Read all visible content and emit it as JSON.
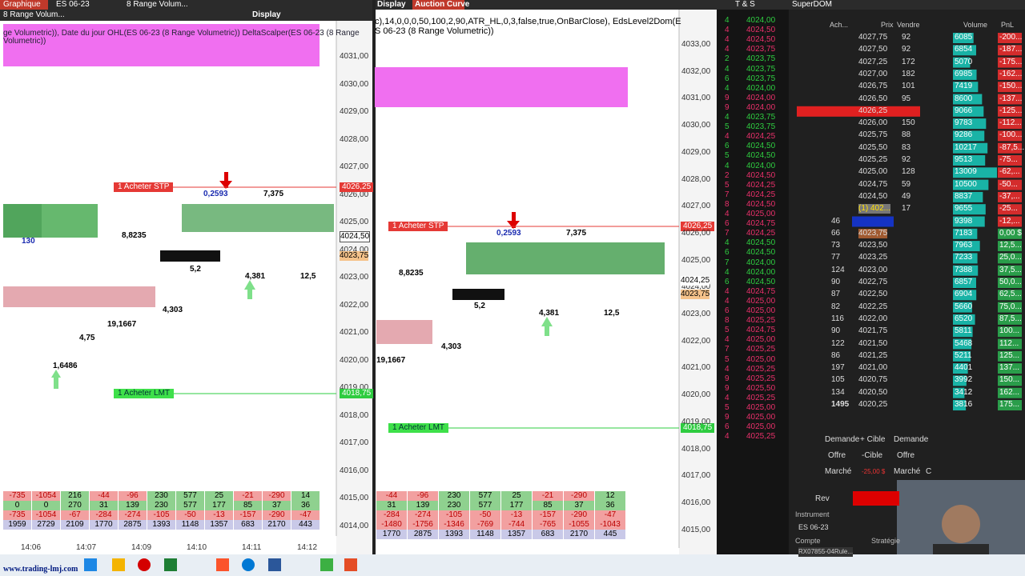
{
  "toolbar": {
    "tab": "Graphique",
    "instrument": "ES 06-23",
    "bar_type": "8 Range Volum...",
    "display": "Display",
    "bar_type_row2": "8 Range Volum..."
  },
  "left_chart": {
    "header": "ge Volumetric)), Date du jour OHL(ES 06-23 (8 Range Volumetric))   DeltaScalper(ES 06-23 (8 Range",
    "header2": "Volumetric))",
    "price_labels": [
      "4031,00",
      "4030,00",
      "4029,00",
      "4028,00",
      "4027,00",
      "4026,00",
      "4025,00",
      "4024,00",
      "4023,00",
      "4022,00",
      "4021,00",
      "4020,00",
      "4019,00",
      "4018,00",
      "4017,00",
      "4016,00",
      "4015,00",
      "4014,00"
    ],
    "orders": [
      {
        "label": "1  Acheter STP",
        "price": "4026,25"
      },
      {
        "label": "1  Acheter LMT",
        "price": "4018,75"
      }
    ],
    "markers": [
      "4024,50",
      "4023,75"
    ],
    "annotations": [
      "8,8235",
      "19,1667",
      "4,303",
      "4,381",
      "5,2",
      "12,5",
      "7,375",
      "0,2593",
      "4,75",
      "1,6486",
      "130"
    ],
    "summary": [
      [
        "-735",
        "-1054",
        "216",
        "-44",
        "-96",
        "230",
        "577",
        "25",
        "-21",
        "-290",
        "14"
      ],
      [
        "0",
        "0",
        "270",
        "31",
        "139",
        "230",
        "577",
        "177",
        "85",
        "37",
        "36"
      ],
      [
        "-735",
        "-1054",
        "-67",
        "-284",
        "-274",
        "-105",
        "-50",
        "-13",
        "-157",
        "-290",
        "-47"
      ],
      [
        "1959",
        "2729",
        "2109",
        "1770",
        "2875",
        "1393",
        "1148",
        "1357",
        "683",
        "2170",
        "443"
      ]
    ],
    "time_labels": [
      "14:06",
      "14:07",
      "14:09",
      "14:10",
      "14:11",
      "14:12"
    ]
  },
  "right_chart": {
    "tabs": [
      "Display",
      "Auction Curve"
    ],
    "header": "c),14,0,0,0,50,100,2,90,ATR_HL,0,3,false,true,OnBarClose), EdsLevel2Dom(E",
    "header2": "S 06-23 (8 Range Volumetric))",
    "price_labels": [
      "4033,00",
      "4032,00",
      "4031,00",
      "4030,00",
      "4029,00",
      "4028,00",
      "4027,00",
      "4026,00",
      "4025,00",
      "4024,00",
      "4023,00",
      "4022,00",
      "4021,00",
      "4020,00",
      "4019,00",
      "4018,00",
      "4017,00",
      "4016,00",
      "4015,00"
    ],
    "orders": [
      {
        "label": "1  Acheter STP",
        "price": "4026,25"
      },
      {
        "label": "1  Acheter LMT",
        "price": "4018,75"
      }
    ],
    "markers": [
      "4024,25",
      "4023,75"
    ],
    "annotations": [
      "8,8235",
      "19,1667",
      "4,303",
      "4,381",
      "5,2",
      "12,5",
      "7,375",
      "0,2593"
    ],
    "summary": [
      [
        "-44",
        "-96",
        "230",
        "577",
        "25",
        "-21",
        "-290",
        "12"
      ],
      [
        "31",
        "139",
        "230",
        "577",
        "177",
        "85",
        "37",
        "36"
      ],
      [
        "-284",
        "-274",
        "-105",
        "-50",
        "-13",
        "-157",
        "-290",
        "-47"
      ],
      [
        "-1480",
        "-1756",
        "-1346",
        "-769",
        "-744",
        "-765",
        "-1055",
        "-1043"
      ],
      [
        "1770",
        "2875",
        "1393",
        "1148",
        "1357",
        "683",
        "2170",
        "445"
      ]
    ]
  },
  "time_and_sales": {
    "title": "T & S",
    "colors": {
      "buy": "#2ecc40",
      "sell": "#e8306a"
    },
    "trades": [
      {
        "price": "4024,00",
        "size": "4",
        "side": "buy"
      },
      {
        "price": "4024,50",
        "size": "4",
        "side": "sell"
      },
      {
        "price": "4024,50",
        "size": "4",
        "side": "sell"
      },
      {
        "price": "4023,75",
        "size": "4",
        "side": "sell"
      },
      {
        "price": "4023,75",
        "size": "2",
        "side": "buy"
      },
      {
        "price": "4023,75",
        "size": "4",
        "side": "buy"
      },
      {
        "price": "4023,75",
        "size": "6",
        "side": "buy"
      },
      {
        "price": "4024,00",
        "size": "4",
        "side": "buy"
      },
      {
        "price": "4024,00",
        "size": "9",
        "side": "sell"
      },
      {
        "price": "4024,00",
        "size": "9",
        "side": "sell"
      },
      {
        "price": "4023,75",
        "size": "4",
        "side": "buy"
      },
      {
        "price": "4023,75",
        "size": "5",
        "side": "buy"
      },
      {
        "price": "4024,25",
        "size": "4",
        "side": "sell"
      },
      {
        "price": "4024,50",
        "size": "6",
        "side": "buy"
      },
      {
        "price": "4024,50",
        "size": "5",
        "side": "buy"
      },
      {
        "price": "4024,00",
        "size": "4",
        "side": "buy"
      },
      {
        "price": "4024,50",
        "size": "2",
        "side": "sell"
      },
      {
        "price": "4024,25",
        "size": "5",
        "side": "sell"
      },
      {
        "price": "4024,25",
        "size": "7",
        "side": "sell"
      },
      {
        "price": "4024,50",
        "size": "8",
        "side": "sell"
      },
      {
        "price": "4025,00",
        "size": "4",
        "side": "sell"
      },
      {
        "price": "4024,75",
        "size": "6",
        "side": "sell"
      },
      {
        "price": "4024,25",
        "size": "7",
        "side": "sell"
      },
      {
        "price": "4024,50",
        "size": "4",
        "side": "buy"
      },
      {
        "price": "4024,50",
        "size": "6",
        "side": "buy"
      },
      {
        "price": "4024,00",
        "size": "7",
        "side": "buy"
      },
      {
        "price": "4024,00",
        "size": "4",
        "side": "buy"
      },
      {
        "price": "4024,50",
        "size": "6",
        "side": "buy"
      },
      {
        "price": "4024,75",
        "size": "4",
        "side": "sell"
      },
      {
        "price": "4025,00",
        "size": "4",
        "side": "sell"
      },
      {
        "price": "4025,00",
        "size": "6",
        "side": "sell"
      },
      {
        "price": "4025,25",
        "size": "8",
        "side": "sell"
      },
      {
        "price": "4024,75",
        "size": "5",
        "side": "sell"
      },
      {
        "price": "4025,00",
        "size": "4",
        "side": "sell"
      },
      {
        "price": "4025,25",
        "size": "7",
        "side": "sell"
      },
      {
        "price": "4025,00",
        "size": "5",
        "side": "sell"
      },
      {
        "price": "4025,25",
        "size": "4",
        "side": "sell"
      },
      {
        "price": "4025,25",
        "size": "9",
        "side": "sell"
      },
      {
        "price": "4025,50",
        "size": "9",
        "side": "sell"
      },
      {
        "price": "4025,25",
        "size": "4",
        "side": "sell"
      },
      {
        "price": "4025,00",
        "size": "5",
        "side": "sell"
      },
      {
        "price": "4025,00",
        "size": "9",
        "side": "sell"
      },
      {
        "price": "4025,00",
        "size": "6",
        "side": "sell"
      },
      {
        "price": "4025,25",
        "size": "4",
        "side": "sell"
      }
    ]
  },
  "superdom": {
    "title": "SuperDOM",
    "headers": [
      "Ach...",
      "Prix",
      "Vendre",
      "Volume",
      "PnL"
    ],
    "rows": [
      {
        "price": "4027,75",
        "sell": "92",
        "volume": "6085",
        "pnl": "-200..."
      },
      {
        "price": "4027,50",
        "sell": "92",
        "volume": "6854",
        "pnl": "-187..."
      },
      {
        "price": "4027,25",
        "sell": "172",
        "volume": "5070",
        "pnl": "-175..."
      },
      {
        "price": "4027,00",
        "sell": "182",
        "volume": "6985",
        "pnl": "-162..."
      },
      {
        "price": "4026,75",
        "sell": "101",
        "volume": "7419",
        "pnl": "-150..."
      },
      {
        "price": "4026,50",
        "sell": "95",
        "volume": "8600",
        "pnl": "-137..."
      },
      {
        "price": "4026,25",
        "volume": "9066",
        "pnl": "-125..."
      },
      {
        "price": "4026,00",
        "sell": "150",
        "volume": "9783",
        "pnl": "-112..."
      },
      {
        "price": "4025,75",
        "sell": "88",
        "volume": "9286",
        "pnl": "-100..."
      },
      {
        "price": "4025,50",
        "sell": "83",
        "volume": "10217",
        "pnl": "-87,5..."
      },
      {
        "price": "4025,25",
        "sell": "92",
        "volume": "9513",
        "pnl": "-75..."
      },
      {
        "price": "4025,00",
        "sell": "128",
        "volume": "13009",
        "pnl": "-62,..."
      },
      {
        "price": "4024,75",
        "sell": "59",
        "volume": "10500",
        "pnl": "-50..."
      },
      {
        "price": "4024,50",
        "sell": "49",
        "volume": "8837",
        "pnl": "-37,..."
      },
      {
        "price": "(1) 402...",
        "sell": "17",
        "volume": "9655",
        "pnl": "-25..."
      },
      {
        "buy": "46",
        "volume": "9398",
        "pnl": "-12,..."
      },
      {
        "price": "4023,75",
        "buy": "66",
        "volume": "7183",
        "pnl": "0,00 $"
      },
      {
        "price": "4023,50",
        "buy": "73",
        "volume": "7963",
        "pnl": "12,5..."
      },
      {
        "price": "4023,25",
        "buy": "77",
        "volume": "7233",
        "pnl": "25,0..."
      },
      {
        "price": "4023,00",
        "buy": "124",
        "volume": "7388",
        "pnl": "37,5..."
      },
      {
        "price": "4022,75",
        "buy": "90",
        "volume": "6857",
        "pnl": "50,0..."
      },
      {
        "price": "4022,50",
        "buy": "87",
        "volume": "6904",
        "pnl": "62,5..."
      },
      {
        "price": "4022,25",
        "buy": "82",
        "volume": "5660",
        "pnl": "75,0..."
      },
      {
        "price": "4022,00",
        "buy": "116",
        "volume": "6520",
        "pnl": "87,5..."
      },
      {
        "price": "4021,75",
        "buy": "90",
        "volume": "5811",
        "pnl": "100..."
      },
      {
        "price": "4021,50",
        "buy": "122",
        "volume": "5468",
        "pnl": "112..."
      },
      {
        "price": "4021,25",
        "buy": "86",
        "volume": "5211",
        "pnl": "125..."
      },
      {
        "price": "4021,00",
        "buy": "197",
        "volume": "4401",
        "pnl": "137..."
      },
      {
        "price": "4020,75",
        "buy": "105",
        "volume": "3992",
        "pnl": "150..."
      },
      {
        "price": "4020,50",
        "buy": "134",
        "volume": "3412",
        "pnl": "162..."
      },
      {
        "price": "4020,25",
        "buy": "1495",
        "volume": "3816",
        "pnl": "175..."
      }
    ],
    "buttons": [
      "Demande",
      "+ Cible",
      "Demande",
      "Offre",
      "-Cible",
      "Offre",
      "Marché",
      "-25,00 $",
      "Marché",
      "C"
    ],
    "rev": "Rev",
    "instrument_label": "Instrument",
    "instrument": "ES 06-23",
    "account_label": "Compte",
    "account": "RX07855-04Rule...",
    "strategy_label": "Stratégie"
  },
  "footer": {
    "url": "www.trading-lmj.com"
  }
}
